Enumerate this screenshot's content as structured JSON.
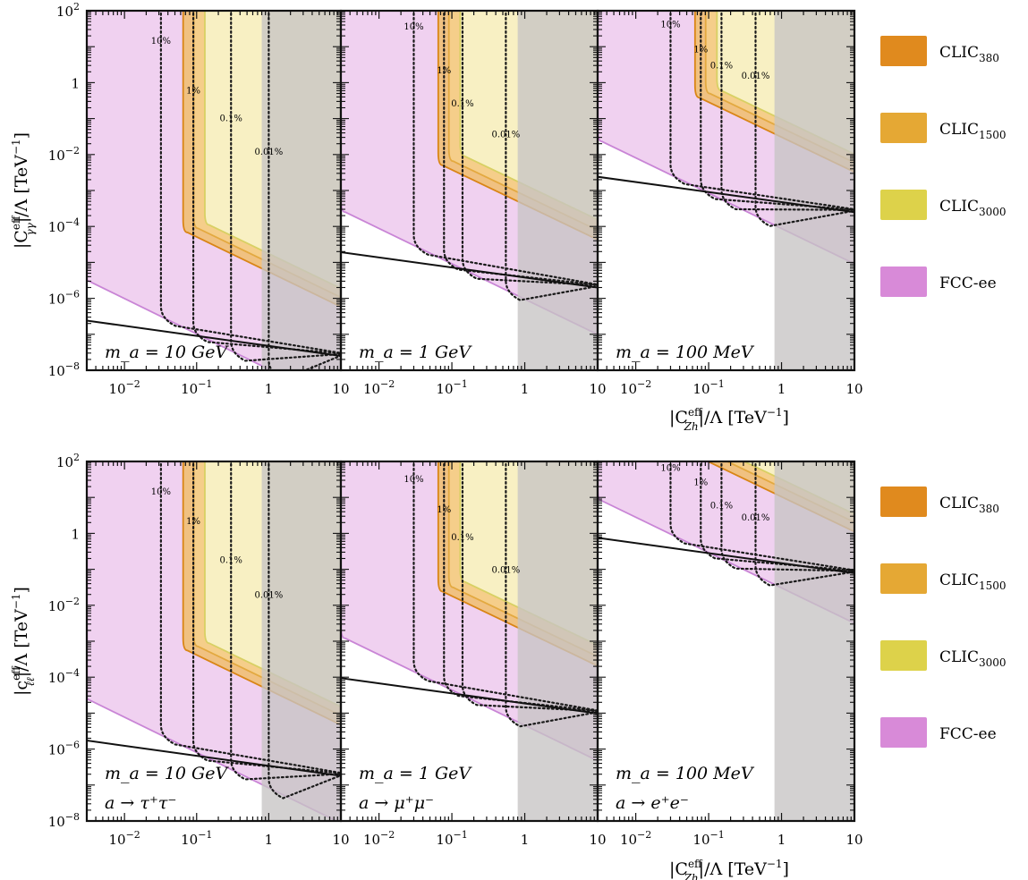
{
  "chart_data": [
    {
      "type": "area",
      "title": "",
      "ylabel": "|C^{eff}_{γγ}|/Λ [TeV^{-1}]",
      "ylabel_parts": {
        "base": "|C",
        "sup": "eff",
        "sub": "γγ",
        "mid": "|/Λ  [TeV",
        "exp": "−1",
        "end": "]"
      },
      "xlabel_parts": {
        "base": "|C",
        "sup": "eff",
        "sub": "Zh",
        "mid": "|/Λ    [TeV",
        "exp": "−1",
        "end": "]"
      },
      "xlim": [
        0.003,
        10
      ],
      "ylim": [
        1e-08,
        100
      ],
      "x_scale": "log",
      "y_scale": "log",
      "xtick_labels": [
        {
          "v": 0.01,
          "base": "10",
          "exp": "−2"
        },
        {
          "v": 0.1,
          "base": "10",
          "exp": "−1"
        },
        {
          "v": 1,
          "base": "1",
          "exp": ""
        },
        {
          "v": 10,
          "base": "10",
          "exp": ""
        }
      ],
      "ytick_labels": [
        {
          "v": 100,
          "base": "10",
          "exp": "2"
        },
        {
          "v": 1,
          "base": "1",
          "exp": ""
        },
        {
          "v": 0.01,
          "base": "10",
          "exp": "−2"
        },
        {
          "v": 0.0001,
          "base": "10",
          "exp": "−4"
        },
        {
          "v": 1e-06,
          "base": "10",
          "exp": "−6"
        },
        {
          "v": 1e-08,
          "base": "10",
          "exp": "−8"
        }
      ],
      "grey_region_x_min": 0.8,
      "panels": [
        {
          "label_lines": [
            "m_a = 10 GeV"
          ],
          "line_at_10": 2.5e-08,
          "series": [
            {
              "name": "FCC-ee",
              "x_min": 0.0028,
              "y_floor": 3e-06
            },
            {
              "name": "CLIC_1500",
              "x_min": 0.065,
              "y_floor": 6.8e-05
            },
            {
              "name": "CLIC_3000",
              "x_min": 0.13,
              "y_floor": 0.00011
            },
            {
              "name": "CLIC_380",
              "x_min": 0.065,
              "y_floor": 6.8e-05
            }
          ],
          "contours": [
            {
              "label": "10%",
              "x": 0.032,
              "label_y": 12
            },
            {
              "label": "1%",
              "x": 0.09,
              "label_y": 0.5
            },
            {
              "label": "0.1%",
              "x": 0.3,
              "label_y": 0.085
            },
            {
              "label": "0.01%",
              "x": 1.0,
              "label_y": 0.01
            }
          ]
        },
        {
          "label_lines": [
            "m_a = 1 GeV"
          ],
          "line_at_10": 2e-06,
          "series": [
            {
              "name": "FCC-ee",
              "x_min": 0.003,
              "y_floor": 0.00025
            },
            {
              "name": "CLIC_1500",
              "x_min": 0.065,
              "y_floor": 0.005
            },
            {
              "name": "CLIC_3000",
              "x_min": 0.13,
              "y_floor": 0.009
            },
            {
              "name": "CLIC_380",
              "x_min": 0.065,
              "y_floor": 0.005
            }
          ],
          "contours": [
            {
              "label": "10%",
              "x": 0.03,
              "label_y": 30
            },
            {
              "label": "1%",
              "x": 0.078,
              "label_y": 1.8
            },
            {
              "label": "0.1%",
              "x": 0.14,
              "label_y": 0.22
            },
            {
              "label": "0.01%",
              "x": 0.55,
              "label_y": 0.03
            }
          ]
        },
        {
          "label_lines": [
            "m_a = 100 MeV"
          ],
          "line_at_10": 0.00025,
          "series": [
            {
              "name": "FCC-ee",
              "x_min": 0.003,
              "y_floor": 0.023
            },
            {
              "name": "CLIC_1500",
              "x_min": 0.065,
              "y_floor": 0.38
            },
            {
              "name": "CLIC_3000",
              "x_min": 0.13,
              "y_floor": 0.6
            },
            {
              "name": "CLIC_380",
              "x_min": 0.065,
              "y_floor": 0.38
            }
          ],
          "contours": [
            {
              "label": "10%",
              "x": 0.03,
              "label_y": 35
            },
            {
              "label": "1%",
              "x": 0.078,
              "label_y": 7
            },
            {
              "label": "0.1%",
              "x": 0.15,
              "label_y": 2.5
            },
            {
              "label": "0.01%",
              "x": 0.44,
              "label_y": 1.3
            }
          ]
        }
      ]
    },
    {
      "type": "area",
      "title": "",
      "ylabel": "|c^{eff}_{ℓℓ}|/Λ [TeV^{-1}]",
      "ylabel_parts": {
        "base": "|c",
        "sup": "eff",
        "sub": "ℓℓ",
        "mid": "|/Λ  [TeV",
        "exp": "−1",
        "end": "]"
      },
      "xlabel_parts": {
        "base": "|C",
        "sup": "eff",
        "sub": "Zh",
        "mid": "|/Λ    [TeV",
        "exp": "−1",
        "end": "]"
      },
      "xlim": [
        0.003,
        10
      ],
      "ylim": [
        1e-08,
        100
      ],
      "x_scale": "log",
      "y_scale": "log",
      "xtick_labels": [
        {
          "v": 0.01,
          "base": "10",
          "exp": "−2"
        },
        {
          "v": 0.1,
          "base": "10",
          "exp": "−1"
        },
        {
          "v": 1,
          "base": "1",
          "exp": ""
        },
        {
          "v": 10,
          "base": "10",
          "exp": ""
        }
      ],
      "ytick_labels": [
        {
          "v": 100,
          "base": "10",
          "exp": "2"
        },
        {
          "v": 1,
          "base": "1",
          "exp": ""
        },
        {
          "v": 0.01,
          "base": "10",
          "exp": "−2"
        },
        {
          "v": 0.0001,
          "base": "10",
          "exp": "−4"
        },
        {
          "v": 1e-06,
          "base": "10",
          "exp": "−6"
        },
        {
          "v": 1e-08,
          "base": "10",
          "exp": "−8"
        }
      ],
      "grey_region_x_min": 0.8,
      "panels": [
        {
          "label_lines": [
            "m_a = 10 GeV",
            "a → τ⁺τ⁻"
          ],
          "line_at_10": 1.8e-07,
          "series": [
            {
              "name": "FCC-ee",
              "x_min": 0.0028,
              "y_floor": 2.35e-05
            },
            {
              "name": "CLIC_1500",
              "x_min": 0.065,
              "y_floor": 0.00055
            },
            {
              "name": "CLIC_3000",
              "x_min": 0.13,
              "y_floor": 0.00088
            },
            {
              "name": "CLIC_380",
              "x_min": 0.065,
              "y_floor": 0.00055
            }
          ],
          "contours": [
            {
              "label": "10%",
              "x": 0.032,
              "label_y": 12
            },
            {
              "label": "1%",
              "x": 0.09,
              "label_y": 1.8
            },
            {
              "label": "0.1%",
              "x": 0.3,
              "label_y": 0.15
            },
            {
              "label": "0.01%",
              "x": 1.0,
              "label_y": 0.016
            }
          ]
        },
        {
          "label_lines": [
            "m_a = 1 GeV",
            "a → μ⁺μ⁻"
          ],
          "line_at_10": 9.8e-06,
          "series": [
            {
              "name": "FCC-ee",
              "x_min": 0.003,
              "y_floor": 0.0012
            },
            {
              "name": "CLIC_1500",
              "x_min": 0.065,
              "y_floor": 0.024
            },
            {
              "name": "CLIC_3000",
              "x_min": 0.13,
              "y_floor": 0.045
            },
            {
              "name": "CLIC_380",
              "x_min": 0.065,
              "y_floor": 0.024
            }
          ],
          "contours": [
            {
              "label": "10%",
              "x": 0.03,
              "label_y": 27
            },
            {
              "label": "1%",
              "x": 0.078,
              "label_y": 3.8
            },
            {
              "label": "0.1%",
              "x": 0.14,
              "label_y": 0.65
            },
            {
              "label": "0.01%",
              "x": 0.55,
              "label_y": 0.08
            }
          ]
        },
        {
          "label_lines": [
            "m_a = 100 MeV",
            "a → e⁺e⁻"
          ],
          "line_at_10": 0.078,
          "series": [
            {
              "name": "FCC-ee",
              "x_min": 0.003,
              "y_floor": 8
            },
            {
              "name": "CLIC_1500",
              "x_min": 0.065,
              "y_floor": 130
            },
            {
              "name": "CLIC_3000",
              "x_min": 0.13,
              "y_floor": 200
            },
            {
              "name": "CLIC_380",
              "x_min": 0.065,
              "y_floor": 130
            }
          ],
          "contours": [
            {
              "label": "10%",
              "x": 0.03,
              "label_y": 55
            },
            {
              "label": "1%",
              "x": 0.078,
              "label_y": 22
            },
            {
              "label": "0.1%",
              "x": 0.15,
              "label_y": 5
            },
            {
              "label": "0.01%",
              "x": 0.44,
              "label_y": 2.3
            }
          ]
        }
      ]
    }
  ],
  "legend": [
    {
      "name": "CLIC_380",
      "base": "CLIC",
      "sub": "380",
      "color": "#E08A1E"
    },
    {
      "name": "CLIC_1500",
      "base": "CLIC",
      "sub": "1500",
      "color": "#E5A834"
    },
    {
      "name": "CLIC_3000",
      "base": "CLIC",
      "sub": "3000",
      "color": "#DDD24A"
    },
    {
      "name": "FCC-ee",
      "base": "FCC-ee",
      "sub": "",
      "color": "#D88AD8"
    }
  ],
  "colors": {
    "fcc_fill": "#EFCFEF",
    "fcc_edge": "#C985D6",
    "clic380_fill": "#EFC07A",
    "clic380_edge": "#D98516",
    "clic1500_fill": "#F4CF8A",
    "clic1500_edge": "#E3A940",
    "clic3000_fill": "#F8F1C6",
    "clic3000_edge": "#D8D063",
    "grey_region": "#C6C4C4"
  }
}
